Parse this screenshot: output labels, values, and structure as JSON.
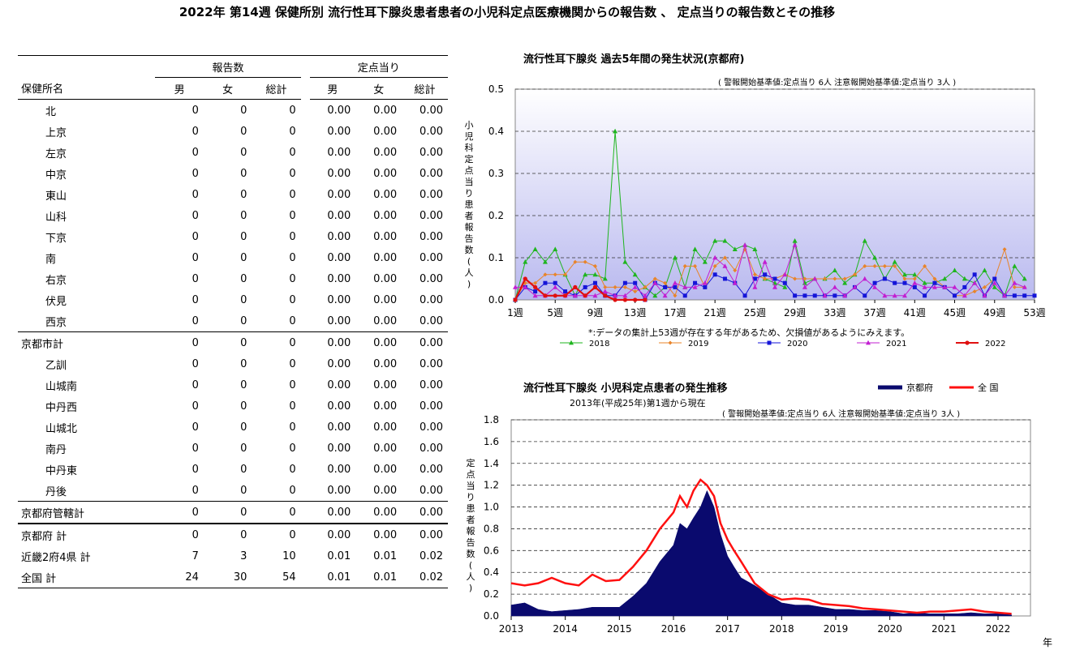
{
  "page_title": "2022年 第14週 保健所別 流行性耳下腺炎患者患者の小児科定点医療機関からの報告数 、 定点当りの報告数とその推移",
  "table": {
    "group_headers": {
      "counts": "報告数",
      "per_point": "定点当り"
    },
    "col_headers": {
      "name": "保健所名",
      "male": "男",
      "female": "女",
      "total": "総計",
      "male2": "男",
      "female2": "女",
      "total2": "総計"
    },
    "rows": [
      {
        "name": "北",
        "m": "0",
        "f": "0",
        "t": "0",
        "pm": "0.00",
        "pf": "0.00",
        "pt": "0.00"
      },
      {
        "name": "上京",
        "m": "0",
        "f": "0",
        "t": "0",
        "pm": "0.00",
        "pf": "0.00",
        "pt": "0.00"
      },
      {
        "name": "左京",
        "m": "0",
        "f": "0",
        "t": "0",
        "pm": "0.00",
        "pf": "0.00",
        "pt": "0.00"
      },
      {
        "name": "中京",
        "m": "0",
        "f": "0",
        "t": "0",
        "pm": "0.00",
        "pf": "0.00",
        "pt": "0.00"
      },
      {
        "name": "東山",
        "m": "0",
        "f": "0",
        "t": "0",
        "pm": "0.00",
        "pf": "0.00",
        "pt": "0.00"
      },
      {
        "name": "山科",
        "m": "0",
        "f": "0",
        "t": "0",
        "pm": "0.00",
        "pf": "0.00",
        "pt": "0.00"
      },
      {
        "name": "下京",
        "m": "0",
        "f": "0",
        "t": "0",
        "pm": "0.00",
        "pf": "0.00",
        "pt": "0.00"
      },
      {
        "name": "南",
        "m": "0",
        "f": "0",
        "t": "0",
        "pm": "0.00",
        "pf": "0.00",
        "pt": "0.00"
      },
      {
        "name": "右京",
        "m": "0",
        "f": "0",
        "t": "0",
        "pm": "0.00",
        "pf": "0.00",
        "pt": "0.00"
      },
      {
        "name": "伏見",
        "m": "0",
        "f": "0",
        "t": "0",
        "pm": "0.00",
        "pf": "0.00",
        "pt": "0.00"
      },
      {
        "name": "西京",
        "m": "0",
        "f": "0",
        "t": "0",
        "pm": "0.00",
        "pf": "0.00",
        "pt": "0.00"
      },
      {
        "name": "京都市計",
        "m": "0",
        "f": "0",
        "t": "0",
        "pm": "0.00",
        "pf": "0.00",
        "pt": "0.00"
      },
      {
        "name": "乙訓",
        "m": "0",
        "f": "0",
        "t": "0",
        "pm": "0.00",
        "pf": "0.00",
        "pt": "0.00"
      },
      {
        "name": "山城南",
        "m": "0",
        "f": "0",
        "t": "0",
        "pm": "0.00",
        "pf": "0.00",
        "pt": "0.00"
      },
      {
        "name": "中丹西",
        "m": "0",
        "f": "0",
        "t": "0",
        "pm": "0.00",
        "pf": "0.00",
        "pt": "0.00"
      },
      {
        "name": "山城北",
        "m": "0",
        "f": "0",
        "t": "0",
        "pm": "0.00",
        "pf": "0.00",
        "pt": "0.00"
      },
      {
        "name": "南丹",
        "m": "0",
        "f": "0",
        "t": "0",
        "pm": "0.00",
        "pf": "0.00",
        "pt": "0.00"
      },
      {
        "name": "中丹東",
        "m": "0",
        "f": "0",
        "t": "0",
        "pm": "0.00",
        "pf": "0.00",
        "pt": "0.00"
      },
      {
        "name": "丹後",
        "m": "0",
        "f": "0",
        "t": "0",
        "pm": "0.00",
        "pf": "0.00",
        "pt": "0.00"
      },
      {
        "name": "京都府管轄計",
        "m": "0",
        "f": "0",
        "t": "0",
        "pm": "0.00",
        "pf": "0.00",
        "pt": "0.00"
      },
      {
        "name": "京都府 計",
        "m": "0",
        "f": "0",
        "t": "0",
        "pm": "0.00",
        "pf": "0.00",
        "pt": "0.00"
      },
      {
        "name": "近畿2府4県 計",
        "m": "7",
        "f": "3",
        "t": "10",
        "pm": "0.01",
        "pf": "0.01",
        "pt": "0.02"
      },
      {
        "name": "全国 計",
        "m": "24",
        "f": "30",
        "t": "54",
        "pm": "0.01",
        "pf": "0.01",
        "pt": "0.02"
      }
    ]
  },
  "chart_data": [
    {
      "type": "line",
      "title": "流行性耳下腺炎 過去5年間の発生状況(京都府)",
      "subtitle": "( 警報開始基準値:定点当り 6人 注意報開始基準値:定点当り 3人 )",
      "ylabel": "小児科定点当り患者報告数(人)",
      "xlabel": "",
      "ylim": [
        0,
        0.5
      ],
      "yticks": [
        "0.0",
        "0.1",
        "0.2",
        "0.3",
        "0.4",
        "0.5"
      ],
      "xlim": [
        1,
        53
      ],
      "xticks": [
        "1週",
        "5週",
        "9週",
        "13週",
        "17週",
        "21週",
        "25週",
        "29週",
        "33週",
        "37週",
        "41週",
        "45週",
        "49週",
        "53週"
      ],
      "footnote": "*:データの集計上53週が存在する年があるため、欠損値があるようにみえます。",
      "background": "lavender gradient",
      "grid": "dashed horizontal",
      "legend_position": "bottom",
      "series": [
        {
          "name": "2018",
          "color": "#1fb51f",
          "marker": "triangle",
          "values": [
            0,
            0.09,
            0.12,
            0.09,
            0.12,
            0.06,
            0.01,
            0.06,
            0.06,
            0.05,
            0.4,
            0.09,
            0.06,
            0.03,
            0.01,
            0.03,
            0.1,
            0.03,
            0.12,
            0.09,
            0.14,
            0.14,
            0.12,
            0.13,
            0.12,
            0.05,
            0.04,
            0.03,
            0.14,
            0.04,
            0.05,
            0.05,
            0.07,
            0.04,
            0.06,
            0.14,
            0.1,
            0.05,
            0.09,
            0.06,
            0.06,
            0.04,
            0.04,
            0.05,
            0.07,
            0.05,
            0.04,
            0.07,
            0.03,
            0.01,
            0.08,
            0.05,
            null
          ]
        },
        {
          "name": "2019",
          "color": "#e8842a",
          "marker": "diamond",
          "values": [
            0,
            0.04,
            0.04,
            0.06,
            0.06,
            0.06,
            0.09,
            0.09,
            0.08,
            0.03,
            0.03,
            0.03,
            0.02,
            0.03,
            0.05,
            0.04,
            0.01,
            0.08,
            0.08,
            0.03,
            0.08,
            0.1,
            0.07,
            0.12,
            0.06,
            0.05,
            0.05,
            0.06,
            0.05,
            0.05,
            0.05,
            0.05,
            0.05,
            0.05,
            0.06,
            0.08,
            0.08,
            0.08,
            0.08,
            0.05,
            0.05,
            0.08,
            0.05,
            0.03,
            0.01,
            0.01,
            0.02,
            0.03,
            0.05,
            0.12,
            0.03,
            0.03,
            null
          ]
        },
        {
          "name": "2020",
          "color": "#1515d8",
          "marker": "square",
          "values": [
            0,
            0.03,
            0.02,
            0.04,
            0.04,
            0.02,
            0.01,
            0.03,
            0.04,
            0.01,
            0.01,
            0.04,
            0.04,
            0,
            0.04,
            0.03,
            0.03,
            0.01,
            0.04,
            0.03,
            0.06,
            0.05,
            0.04,
            0.01,
            0.05,
            0.06,
            0.05,
            0.04,
            0.01,
            0.01,
            0.01,
            0.01,
            0.01,
            0.01,
            0.03,
            0.01,
            0.04,
            0.05,
            0.04,
            0.04,
            0.03,
            0.01,
            0.04,
            0.03,
            0.01,
            0.03,
            0.06,
            0.01,
            0.05,
            0.01,
            0.01,
            0.01,
            0.01
          ]
        },
        {
          "name": "2021",
          "color": "#c21fd1",
          "marker": "triangle",
          "values": [
            0.03,
            0.03,
            0.01,
            0.01,
            0.03,
            0.01,
            0.01,
            0.01,
            0.01,
            0.02,
            0.01,
            0.01,
            0.03,
            0.01,
            0.04,
            0.01,
            0.04,
            0.03,
            0.03,
            0.04,
            0.1,
            0.08,
            0.04,
            0.13,
            0.03,
            0.09,
            0.03,
            0.06,
            0.13,
            0.03,
            0.05,
            0.01,
            0.03,
            0.01,
            0.03,
            0.05,
            0.03,
            0.01,
            0.01,
            0.01,
            0.04,
            0.03,
            0.03,
            0.03,
            0.03,
            0.01,
            0.04,
            0.01,
            0.04,
            0.01,
            0.04,
            0.03,
            null
          ]
        },
        {
          "name": "2022",
          "color": "#e01010",
          "marker": "circle",
          "values": [
            0,
            0.05,
            0.03,
            0.01,
            0.01,
            0.01,
            0.03,
            0.01,
            0.03,
            0.01,
            0,
            0,
            0,
            0,
            null,
            null,
            null,
            null,
            null,
            null,
            null,
            null,
            null,
            null,
            null,
            null,
            null,
            null,
            null,
            null,
            null,
            null,
            null,
            null,
            null,
            null,
            null,
            null,
            null,
            null,
            null,
            null,
            null,
            null,
            null,
            null,
            null,
            null,
            null,
            null,
            null,
            null,
            null
          ]
        }
      ]
    },
    {
      "type": "area",
      "title": "流行性耳下腺炎 小児科定点患者の発生推移",
      "subtitle": "2013年(平成25年)第1週から現在",
      "subtitle2": "( 警報開始基準値:定点当り 6人 注意報開始基準値:定点当り 3人 )",
      "ylabel": "定点当り患者報告数(人)",
      "xlabel": "年",
      "ylim": [
        0,
        1.8
      ],
      "yticks": [
        "0.0",
        "0.2",
        "0.4",
        "0.6",
        "0.8",
        "1.0",
        "1.2",
        "1.4",
        "1.6",
        "1.8"
      ],
      "xticks": [
        "2013",
        "2014",
        "2015",
        "2016",
        "2017",
        "2018",
        "2019",
        "2020",
        "2021",
        "2022"
      ],
      "grid": "dashed horizontal",
      "legend_position": "top-right",
      "series": [
        {
          "name": "京都府",
          "color": "#0a0a6e",
          "kind": "area",
          "x": [
            2013.0,
            2013.25,
            2013.5,
            2013.75,
            2014.0,
            2014.25,
            2014.5,
            2014.75,
            2015.0,
            2015.25,
            2015.5,
            2015.75,
            2016.0,
            2016.12,
            2016.25,
            2016.37,
            2016.5,
            2016.62,
            2016.75,
            2016.87,
            2017.0,
            2017.12,
            2017.25,
            2017.5,
            2017.75,
            2018.0,
            2018.25,
            2018.5,
            2018.75,
            2019.0,
            2019.25,
            2019.5,
            2019.75,
            2020.0,
            2020.25,
            2020.5,
            2020.75,
            2021.0,
            2021.25,
            2021.5,
            2021.75,
            2022.0,
            2022.25
          ],
          "values": [
            0.1,
            0.12,
            0.06,
            0.04,
            0.05,
            0.06,
            0.08,
            0.08,
            0.08,
            0.18,
            0.3,
            0.5,
            0.65,
            0.85,
            0.8,
            0.9,
            1.0,
            1.15,
            1.0,
            0.75,
            0.55,
            0.45,
            0.35,
            0.28,
            0.2,
            0.12,
            0.1,
            0.1,
            0.08,
            0.06,
            0.06,
            0.05,
            0.05,
            0.04,
            0.02,
            0.03,
            0.02,
            0.02,
            0.02,
            0.03,
            0.02,
            0.02,
            0.01
          ]
        },
        {
          "name": "全 国",
          "color": "#ff1010",
          "kind": "line",
          "x": [
            2013.0,
            2013.25,
            2013.5,
            2013.75,
            2014.0,
            2014.25,
            2014.5,
            2014.75,
            2015.0,
            2015.25,
            2015.5,
            2015.75,
            2016.0,
            2016.12,
            2016.25,
            2016.37,
            2016.5,
            2016.62,
            2016.75,
            2016.87,
            2017.0,
            2017.12,
            2017.25,
            2017.5,
            2017.75,
            2018.0,
            2018.25,
            2018.5,
            2018.75,
            2019.0,
            2019.25,
            2019.5,
            2019.75,
            2020.0,
            2020.25,
            2020.5,
            2020.75,
            2021.0,
            2021.25,
            2021.5,
            2021.75,
            2022.0,
            2022.25
          ],
          "values": [
            0.3,
            0.28,
            0.3,
            0.35,
            0.3,
            0.28,
            0.38,
            0.32,
            0.33,
            0.45,
            0.6,
            0.8,
            0.95,
            1.1,
            1.0,
            1.15,
            1.25,
            1.2,
            1.1,
            0.85,
            0.7,
            0.6,
            0.5,
            0.3,
            0.2,
            0.15,
            0.16,
            0.15,
            0.11,
            0.1,
            0.09,
            0.07,
            0.06,
            0.05,
            0.04,
            0.03,
            0.04,
            0.04,
            0.05,
            0.06,
            0.04,
            0.03,
            0.02
          ]
        }
      ]
    }
  ]
}
